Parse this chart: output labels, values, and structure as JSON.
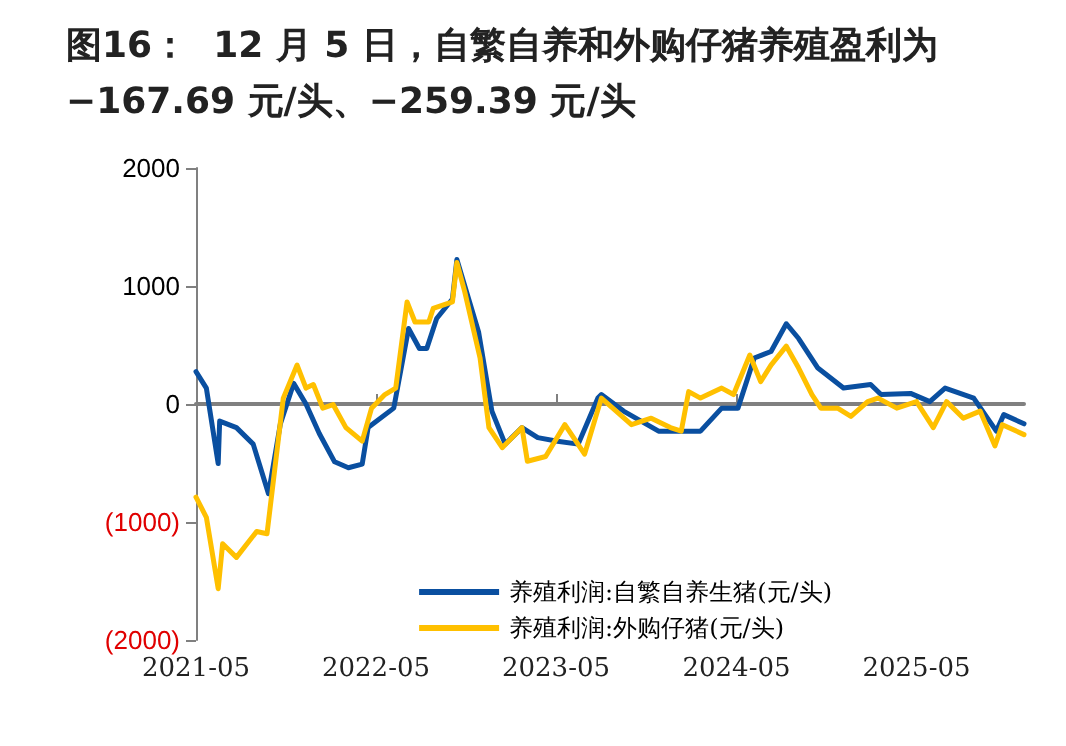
{
  "chart_data": {
    "type": "line",
    "title": "图16：  12 月 5 日，自繁自养和外购仔猪养殖盈利为 −167.69 元/头、−259.39 元/头",
    "xlim": [
      "2021-05",
      "2025-12-05"
    ],
    "xticks": [
      "2021-05",
      "2022-05",
      "2023-05",
      "2024-05",
      "2025-05"
    ],
    "ylim": [
      -2000,
      2000
    ],
    "yticks": [
      {
        "value": -2000,
        "label": "(2000)"
      },
      {
        "value": -1000,
        "label": "(1000)"
      },
      0,
      1000,
      2000
    ],
    "legend": "bottom right",
    "marker": "none",
    "line_style": "solid",
    "series": [
      {
        "name": "养殖利润:自繁自养生猪(元/头)",
        "color": "#0a4fa0",
        "x": [
          "2021-05-01",
          "2021-05-22",
          "2021-06-15",
          "2021-06-18",
          "2021-07-22",
          "2021-08-25",
          "2021-09-25",
          "2021-10-19",
          "2021-11-15",
          "2021-12-10",
          "2022-01-06",
          "2022-02-06",
          "2022-03-06",
          "2022-04-03",
          "2022-04-15",
          "2022-06-06",
          "2022-07-06",
          "2022-07-28",
          "2022-08-12",
          "2022-09-01",
          "2022-10-03",
          "2022-10-12",
          "2022-10-28",
          "2022-11-25",
          "2022-12-22",
          "2023-01-18",
          "2023-02-21",
          "2023-03-25",
          "2023-05-04",
          "2023-06-15",
          "2023-07-25",
          "2023-08-01",
          "2023-09-15",
          "2023-11-25",
          "2024-01-04",
          "2024-02-18",
          "2024-04-01",
          "2024-05-04",
          "2024-06-06",
          "2024-07-10",
          "2024-08-10",
          "2024-09-04",
          "2024-10-13",
          "2024-12-04",
          "2025-01-28",
          "2025-02-18",
          "2025-04-19",
          "2025-05-28",
          "2025-06-28",
          "2025-08-25",
          "2025-10-10",
          "2025-10-25",
          "2025-12-05"
        ],
        "values": [
          275,
          135,
          -505,
          -145,
          -200,
          -340,
          -760,
          -170,
          175,
          0,
          -250,
          -490,
          -540,
          -510,
          -200,
          -35,
          640,
          470,
          470,
          725,
          890,
          1225,
          1000,
          610,
          -60,
          -340,
          -200,
          -285,
          -315,
          -340,
          50,
          80,
          -60,
          -230,
          -230,
          -230,
          -35,
          -35,
          390,
          445,
          680,
          555,
          305,
          135,
          165,
          80,
          90,
          20,
          135,
          50,
          -230,
          -90,
          -167.69
        ]
      },
      {
        "name": "养殖利润:外购仔猪(元/头)",
        "color": "#ffc000",
        "x": [
          "2021-05-01",
          "2021-05-22",
          "2021-06-15",
          "2021-06-24",
          "2021-07-22",
          "2021-09-01",
          "2021-09-22",
          "2021-10-25",
          "2021-11-22",
          "2021-12-10",
          "2021-12-25",
          "2022-01-13",
          "2022-02-03",
          "2022-03-01",
          "2022-04-03",
          "2022-04-22",
          "2022-05-19",
          "2022-06-10",
          "2022-07-03",
          "2022-07-19",
          "2022-08-16",
          "2022-08-25",
          "2022-10-03",
          "2022-10-12",
          "2022-10-28",
          "2022-11-28",
          "2022-12-16",
          "2023-01-12",
          "2023-02-21",
          "2023-03-04",
          "2023-04-10",
          "2023-05-19",
          "2023-06-28",
          "2023-08-01",
          "2023-10-01",
          "2023-11-10",
          "2023-12-19",
          "2024-01-10",
          "2024-01-25",
          "2024-02-18",
          "2024-04-01",
          "2024-04-25",
          "2024-05-28",
          "2024-06-19",
          "2024-07-10",
          "2024-08-10",
          "2024-09-04",
          "2024-10-01",
          "2024-10-19",
          "2024-11-22",
          "2024-12-19",
          "2025-01-22",
          "2025-02-12",
          "2025-03-22",
          "2025-05-01",
          "2025-06-04",
          "2025-07-01",
          "2025-08-04",
          "2025-09-07",
          "2025-10-07",
          "2025-10-22",
          "2025-12-05"
        ],
        "values": [
          -790,
          -960,
          -1565,
          -1185,
          -1300,
          -1080,
          -1100,
          50,
          330,
          135,
          165,
          -35,
          -5,
          -200,
          -315,
          -35,
          80,
          135,
          865,
          695,
          695,
          810,
          865,
          1200,
          950,
          390,
          -200,
          -370,
          -200,
          -485,
          -445,
          -175,
          -425,
          50,
          -175,
          -120,
          -200,
          -230,
          105,
          50,
          135,
          80,
          415,
          190,
          330,
          490,
          305,
          80,
          -35,
          -35,
          -105,
          20,
          50,
          -35,
          20,
          -200,
          20,
          -120,
          -60,
          -355,
          -175,
          -259.39
        ]
      }
    ]
  }
}
